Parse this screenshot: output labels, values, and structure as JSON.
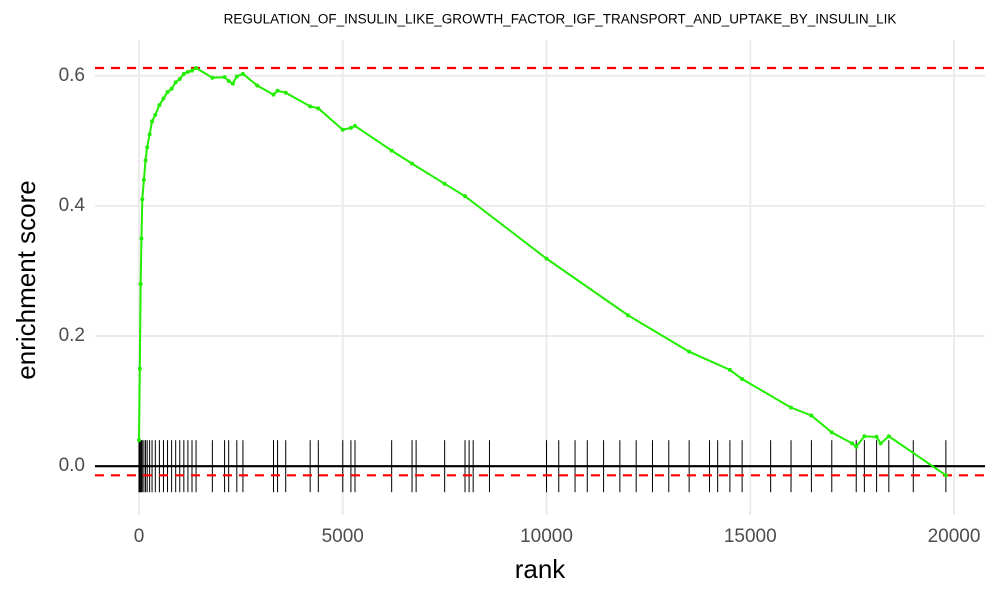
{
  "chart_data": {
    "type": "line",
    "title": "REGULATION_OF_INSULIN_LIKE_GROWTH_FACTOR_IGF_TRANSPORT_AND_UPTAKE_BY_INSULIN_LIK",
    "x_label": "rank",
    "y_label": "enrichment score",
    "x": [
      0,
      20,
      40,
      60,
      80,
      120,
      160,
      200,
      260,
      320,
      400,
      500,
      600,
      700,
      800,
      900,
      1000,
      1100,
      1200,
      1300,
      1400,
      1800,
      2100,
      2200,
      2300,
      2400,
      2550,
      2900,
      3300,
      3400,
      3600,
      4200,
      4400,
      5000,
      5200,
      5300,
      6200,
      6700,
      7500,
      8000,
      10000,
      12000,
      13500,
      14500,
      14800,
      16000,
      16500,
      17000,
      17500,
      17600,
      17800,
      18100,
      18200,
      18400,
      19800
    ],
    "series": [
      {
        "color": "#22ee00",
        "values": [
          0.04,
          0.15,
          0.28,
          0.35,
          0.41,
          0.44,
          0.47,
          0.49,
          0.51,
          0.53,
          0.54,
          0.555,
          0.565,
          0.575,
          0.58,
          0.59,
          0.595,
          0.603,
          0.606,
          0.608,
          0.612,
          0.597,
          0.598,
          0.592,
          0.588,
          0.599,
          0.603,
          0.585,
          0.571,
          0.577,
          0.574,
          0.553,
          0.55,
          0.517,
          0.52,
          0.523,
          0.485,
          0.465,
          0.434,
          0.415,
          0.319,
          0.232,
          0.176,
          0.148,
          0.134,
          0.09,
          0.078,
          0.052,
          0.035,
          0.03,
          0.046,
          0.045,
          0.035,
          0.046,
          -0.014
        ]
      }
    ],
    "hits": [
      0,
      20,
      40,
      60,
      80,
      120,
      160,
      200,
      260,
      320,
      400,
      500,
      600,
      700,
      800,
      900,
      1000,
      1100,
      1200,
      1300,
      1400,
      1800,
      2100,
      2200,
      2400,
      2550,
      3300,
      3400,
      3600,
      4200,
      4400,
      5000,
      5200,
      5300,
      6200,
      6700,
      6800,
      7500,
      8000,
      8100,
      8200,
      8600,
      10000,
      10300,
      10700,
      11000,
      11400,
      11800,
      12200,
      12600,
      13000,
      13500,
      14000,
      14200,
      14500,
      14800,
      15500,
      16000,
      16500,
      17000,
      17600,
      17800,
      18100,
      18400,
      19000,
      19800
    ],
    "hit_color": "#000000",
    "reference_lines": [
      {
        "value": 0.612,
        "color": "#ff0000",
        "dashed": true
      },
      {
        "value": -0.014,
        "color": "#ff0000",
        "dashed": true
      },
      {
        "value": 0,
        "color": "#000000",
        "dashed": false
      }
    ],
    "xlim": [
      -1080,
      20760
    ],
    "ylim": [
      -0.075,
      0.655
    ],
    "xticks": [
      0,
      5000,
      10000,
      15000,
      20000
    ],
    "yticks": [
      {
        "value": 0,
        "label": "0.0"
      },
      0.2,
      0.4,
      0.6
    ],
    "grid": true
  }
}
